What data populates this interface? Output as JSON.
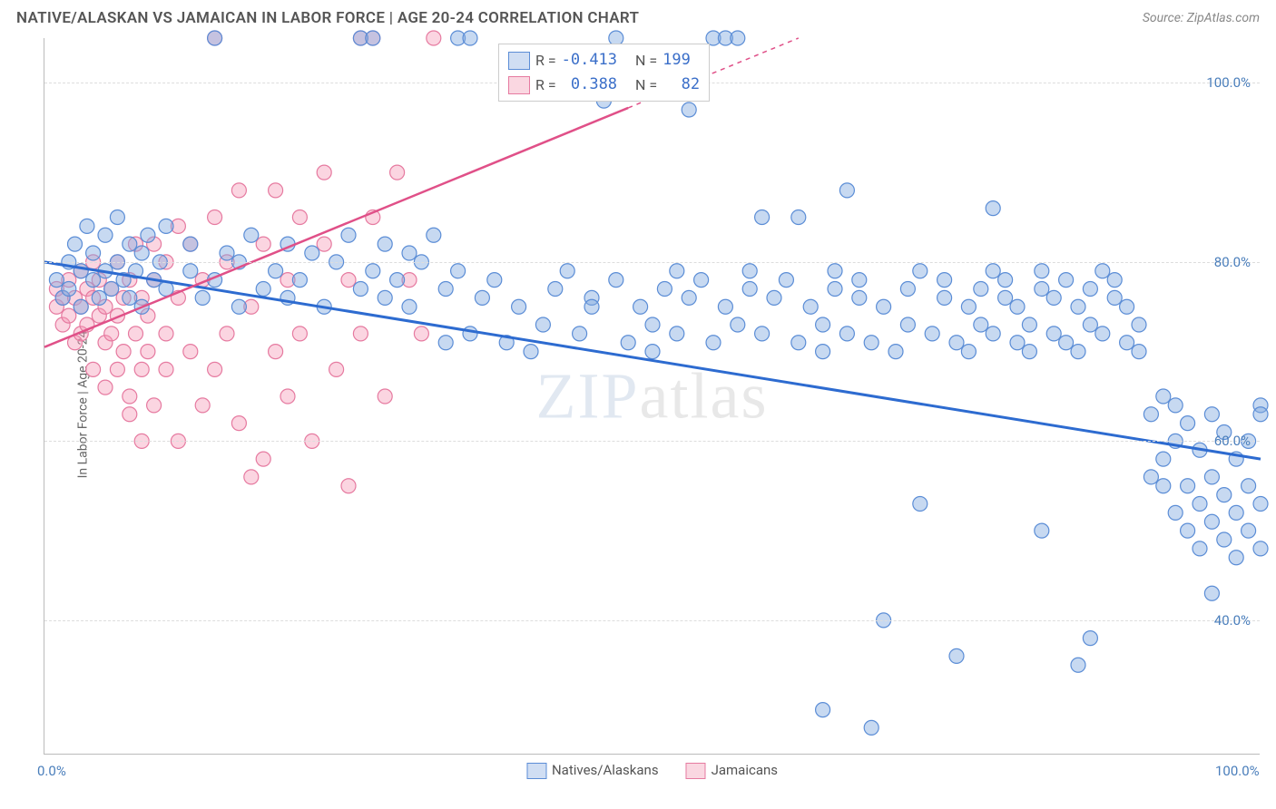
{
  "header": {
    "title": "NATIVE/ALASKAN VS JAMAICAN IN LABOR FORCE | AGE 20-24 CORRELATION CHART",
    "source": "Source: ZipAtlas.com"
  },
  "chart": {
    "type": "scatter",
    "ylabel": "In Labor Force | Age 20-24",
    "watermark_zip": "ZIP",
    "watermark_atlas": "atlas",
    "xlim": [
      0,
      100
    ],
    "ylim": [
      25,
      105
    ],
    "yticks": [
      {
        "v": 40,
        "label": "40.0%"
      },
      {
        "v": 60,
        "label": "60.0%"
      },
      {
        "v": 80,
        "label": "80.0%"
      },
      {
        "v": 100,
        "label": "100.0%"
      }
    ],
    "xticks": [
      {
        "v": 0,
        "label": "0.0%"
      },
      {
        "v": 100,
        "label": "100.0%"
      }
    ],
    "legend_top": [
      {
        "color": "blue",
        "r_label": "R =",
        "r_val": "-0.413",
        "n_label": "N =",
        "n_val": "199"
      },
      {
        "color": "pink",
        "r_label": "R =",
        "r_val": "0.388",
        "n_label": "N =",
        "n_val": "82"
      }
    ],
    "legend_bottom": [
      {
        "color": "blue",
        "label": "Natives/Alaskans"
      },
      {
        "color": "pink",
        "label": "Jamaicans"
      }
    ],
    "series_blue": {
      "marker_color": "rgba(130,170,225,0.45)",
      "marker_stroke": "#5b8dd6",
      "radius": 8,
      "trend": {
        "x1": 0,
        "y1": 80,
        "x2": 100,
        "y2": 58,
        "solid_until_x": 100,
        "stroke": "#2d6bd0",
        "width": 3
      }
    },
    "series_pink": {
      "marker_color": "rgba(245,150,180,0.4)",
      "marker_stroke": "#e67aa0",
      "radius": 8,
      "trend": {
        "x1": 0,
        "y1": 70.5,
        "x2": 62,
        "y2": 105,
        "stroke": "#e05088",
        "width": 2.5,
        "dashed_from_x": 48,
        "dashed_to_x": 62
      }
    },
    "points_blue": [
      [
        1,
        78
      ],
      [
        1.5,
        76
      ],
      [
        2,
        80
      ],
      [
        2,
        77
      ],
      [
        2.5,
        82
      ],
      [
        3,
        79
      ],
      [
        3,
        75
      ],
      [
        3.5,
        84
      ],
      [
        4,
        78
      ],
      [
        4,
        81
      ],
      [
        4.5,
        76
      ],
      [
        5,
        83
      ],
      [
        5,
        79
      ],
      [
        5.5,
        77
      ],
      [
        6,
        80
      ],
      [
        6,
        85
      ],
      [
        6.5,
        78
      ],
      [
        7,
        82
      ],
      [
        7,
        76
      ],
      [
        7.5,
        79
      ],
      [
        8,
        81
      ],
      [
        8,
        75
      ],
      [
        8.5,
        83
      ],
      [
        9,
        78
      ],
      [
        9.5,
        80
      ],
      [
        10,
        77
      ],
      [
        10,
        84
      ],
      [
        12,
        79
      ],
      [
        12,
        82
      ],
      [
        13,
        76
      ],
      [
        14,
        78
      ],
      [
        14,
        105
      ],
      [
        15,
        81
      ],
      [
        16,
        75
      ],
      [
        16,
        80
      ],
      [
        17,
        83
      ],
      [
        18,
        77
      ],
      [
        19,
        79
      ],
      [
        20,
        82
      ],
      [
        20,
        76
      ],
      [
        21,
        78
      ],
      [
        22,
        81
      ],
      [
        23,
        75
      ],
      [
        24,
        80
      ],
      [
        25,
        83
      ],
      [
        26,
        77
      ],
      [
        26,
        105
      ],
      [
        27,
        79
      ],
      [
        27,
        105
      ],
      [
        28,
        82
      ],
      [
        28,
        76
      ],
      [
        29,
        78
      ],
      [
        30,
        81
      ],
      [
        30,
        75
      ],
      [
        31,
        80
      ],
      [
        32,
        83
      ],
      [
        33,
        71
      ],
      [
        33,
        77
      ],
      [
        34,
        105
      ],
      [
        34,
        79
      ],
      [
        35,
        72
      ],
      [
        35,
        105
      ],
      [
        36,
        76
      ],
      [
        37,
        78
      ],
      [
        38,
        71
      ],
      [
        39,
        75
      ],
      [
        40,
        70
      ],
      [
        41,
        73
      ],
      [
        42,
        77
      ],
      [
        43,
        79
      ],
      [
        44,
        72
      ],
      [
        45,
        76
      ],
      [
        45,
        75
      ],
      [
        46,
        98
      ],
      [
        47,
        78
      ],
      [
        47,
        105
      ],
      [
        48,
        71
      ],
      [
        49,
        75
      ],
      [
        50,
        70
      ],
      [
        50,
        73
      ],
      [
        51,
        77
      ],
      [
        52,
        79
      ],
      [
        52,
        72
      ],
      [
        53,
        97
      ],
      [
        53,
        76
      ],
      [
        54,
        78
      ],
      [
        55,
        105
      ],
      [
        55,
        71
      ],
      [
        56,
        105
      ],
      [
        56,
        75
      ],
      [
        57,
        105
      ],
      [
        57,
        73
      ],
      [
        58,
        77
      ],
      [
        58,
        79
      ],
      [
        59,
        85
      ],
      [
        59,
        72
      ],
      [
        60,
        76
      ],
      [
        61,
        78
      ],
      [
        62,
        71
      ],
      [
        62,
        85
      ],
      [
        63,
        75
      ],
      [
        64,
        70
      ],
      [
        64,
        30
      ],
      [
        64,
        73
      ],
      [
        65,
        77
      ],
      [
        65,
        79
      ],
      [
        66,
        88
      ],
      [
        66,
        72
      ],
      [
        67,
        76
      ],
      [
        67,
        78
      ],
      [
        68,
        28
      ],
      [
        68,
        71
      ],
      [
        69,
        75
      ],
      [
        69,
        40
      ],
      [
        70,
        70
      ],
      [
        71,
        73
      ],
      [
        71,
        77
      ],
      [
        72,
        53
      ],
      [
        72,
        79
      ],
      [
        73,
        72
      ],
      [
        74,
        76
      ],
      [
        74,
        78
      ],
      [
        75,
        71
      ],
      [
        75,
        36
      ],
      [
        76,
        75
      ],
      [
        76,
        70
      ],
      [
        77,
        73
      ],
      [
        77,
        77
      ],
      [
        78,
        79
      ],
      [
        78,
        72
      ],
      [
        78,
        86
      ],
      [
        79,
        76
      ],
      [
        79,
        78
      ],
      [
        80,
        71
      ],
      [
        80,
        75
      ],
      [
        81,
        70
      ],
      [
        81,
        73
      ],
      [
        82,
        77
      ],
      [
        82,
        50
      ],
      [
        82,
        79
      ],
      [
        83,
        72
      ],
      [
        83,
        76
      ],
      [
        84,
        78
      ],
      [
        84,
        71
      ],
      [
        85,
        75
      ],
      [
        85,
        35
      ],
      [
        85,
        70
      ],
      [
        86,
        38
      ],
      [
        86,
        73
      ],
      [
        86,
        77
      ],
      [
        87,
        79
      ],
      [
        87,
        72
      ],
      [
        88,
        76
      ],
      [
        88,
        78
      ],
      [
        89,
        71
      ],
      [
        89,
        75
      ],
      [
        90,
        70
      ],
      [
        90,
        73
      ],
      [
        91,
        56
      ],
      [
        91,
        63
      ],
      [
        92,
        55
      ],
      [
        92,
        58
      ],
      [
        92,
        65
      ],
      [
        93,
        52
      ],
      [
        93,
        60
      ],
      [
        93,
        64
      ],
      [
        94,
        50
      ],
      [
        94,
        55
      ],
      [
        94,
        62
      ],
      [
        95,
        48
      ],
      [
        95,
        53
      ],
      [
        95,
        59
      ],
      [
        96,
        51
      ],
      [
        96,
        56
      ],
      [
        96,
        63
      ],
      [
        96,
        43
      ],
      [
        97,
        49
      ],
      [
        97,
        54
      ],
      [
        97,
        61
      ],
      [
        98,
        47
      ],
      [
        98,
        52
      ],
      [
        98,
        58
      ],
      [
        99,
        50
      ],
      [
        99,
        55
      ],
      [
        99,
        60
      ],
      [
        100,
        48
      ],
      [
        100,
        53
      ],
      [
        100,
        64
      ],
      [
        100,
        63
      ]
    ],
    "points_pink": [
      [
        1,
        75
      ],
      [
        1,
        77
      ],
      [
        1.5,
        73
      ],
      [
        1.5,
        76
      ],
      [
        2,
        78
      ],
      [
        2,
        74
      ],
      [
        2.5,
        76
      ],
      [
        2.5,
        71
      ],
      [
        3,
        79
      ],
      [
        3,
        75
      ],
      [
        3,
        72
      ],
      [
        3.5,
        77
      ],
      [
        3.5,
        73
      ],
      [
        4,
        80
      ],
      [
        4,
        76
      ],
      [
        4,
        68
      ],
      [
        4.5,
        74
      ],
      [
        4.5,
        78
      ],
      [
        5,
        71
      ],
      [
        5,
        75
      ],
      [
        5,
        66
      ],
      [
        5.5,
        77
      ],
      [
        5.5,
        72
      ],
      [
        6,
        80
      ],
      [
        6,
        68
      ],
      [
        6,
        74
      ],
      [
        6.5,
        76
      ],
      [
        6.5,
        70
      ],
      [
        7,
        78
      ],
      [
        7,
        63
      ],
      [
        7,
        65
      ],
      [
        7.5,
        72
      ],
      [
        7.5,
        82
      ],
      [
        8,
        68
      ],
      [
        8,
        76
      ],
      [
        8,
        60
      ],
      [
        8.5,
        70
      ],
      [
        8.5,
        74
      ],
      [
        9,
        78
      ],
      [
        9,
        64
      ],
      [
        9,
        82
      ],
      [
        10,
        68
      ],
      [
        10,
        72
      ],
      [
        10,
        80
      ],
      [
        11,
        84
      ],
      [
        11,
        60
      ],
      [
        11,
        76
      ],
      [
        12,
        70
      ],
      [
        12,
        82
      ],
      [
        13,
        64
      ],
      [
        13,
        78
      ],
      [
        14,
        68
      ],
      [
        14,
        105
      ],
      [
        14,
        85
      ],
      [
        15,
        72
      ],
      [
        15,
        80
      ],
      [
        16,
        62
      ],
      [
        16,
        88
      ],
      [
        17,
        75
      ],
      [
        17,
        56
      ],
      [
        18,
        82
      ],
      [
        18,
        58
      ],
      [
        19,
        70
      ],
      [
        19,
        88
      ],
      [
        20,
        65
      ],
      [
        20,
        78
      ],
      [
        21,
        72
      ],
      [
        21,
        85
      ],
      [
        22,
        60
      ],
      [
        23,
        82
      ],
      [
        23,
        90
      ],
      [
        24,
        68
      ],
      [
        25,
        78
      ],
      [
        25,
        55
      ],
      [
        26,
        105
      ],
      [
        26,
        72
      ],
      [
        27,
        105
      ],
      [
        27,
        85
      ],
      [
        28,
        65
      ],
      [
        29,
        90
      ],
      [
        30,
        78
      ],
      [
        31,
        72
      ],
      [
        32,
        105
      ]
    ]
  }
}
